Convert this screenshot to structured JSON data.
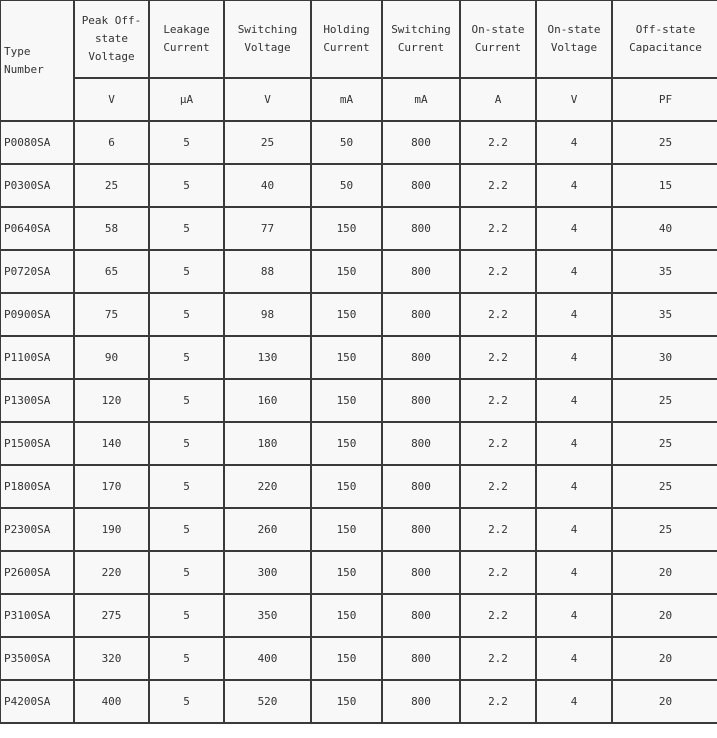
{
  "headers": [
    "Type Number",
    "Peak Off-state Voltage",
    "Leakage Current",
    "Switching Voltage",
    "Holding Current",
    "Switching Current",
    "On-state Current",
    "On-state Voltage",
    "Off-state Capacitance"
  ],
  "units": [
    "V",
    "μA",
    "V",
    "mA",
    "mA",
    "A",
    "V",
    "PF"
  ],
  "rows": [
    [
      "P0080SA",
      "6",
      "5",
      "25",
      "50",
      "800",
      "2.2",
      "4",
      "25"
    ],
    [
      "P0300SA",
      "25",
      "5",
      "40",
      "50",
      "800",
      "2.2",
      "4",
      "15"
    ],
    [
      "P0640SA",
      "58",
      "5",
      "77",
      "150",
      "800",
      "2.2",
      "4",
      "40"
    ],
    [
      "P0720SA",
      "65",
      "5",
      "88",
      "150",
      "800",
      "2.2",
      "4",
      "35"
    ],
    [
      "P0900SA",
      "75",
      "5",
      "98",
      "150",
      "800",
      "2.2",
      "4",
      "35"
    ],
    [
      "P1100SA",
      "90",
      "5",
      "130",
      "150",
      "800",
      "2.2",
      "4",
      "30"
    ],
    [
      "P1300SA",
      "120",
      "5",
      "160",
      "150",
      "800",
      "2.2",
      "4",
      "25"
    ],
    [
      "P1500SA",
      "140",
      "5",
      "180",
      "150",
      "800",
      "2.2",
      "4",
      "25"
    ],
    [
      "P1800SA",
      "170",
      "5",
      "220",
      "150",
      "800",
      "2.2",
      "4",
      "25"
    ],
    [
      "P2300SA",
      "190",
      "5",
      "260",
      "150",
      "800",
      "2.2",
      "4",
      "25"
    ],
    [
      "P2600SA",
      "220",
      "5",
      "300",
      "150",
      "800",
      "2.2",
      "4",
      "20"
    ],
    [
      "P3100SA",
      "275",
      "5",
      "350",
      "150",
      "800",
      "2.2",
      "4",
      "20"
    ],
    [
      "P3500SA",
      "320",
      "5",
      "400",
      "150",
      "800",
      "2.2",
      "4",
      "20"
    ],
    [
      "P4200SA",
      "400",
      "5",
      "520",
      "150",
      "800",
      "2.2",
      "4",
      "20"
    ]
  ]
}
